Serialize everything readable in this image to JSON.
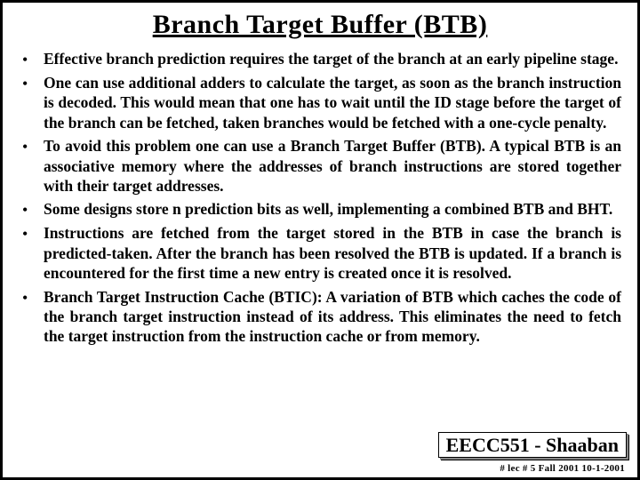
{
  "title": "Branch Target Buffer (BTB)",
  "bullets": [
    "Effective branch prediction requires the target of the branch at an early pipeline stage.",
    "One can use additional adders to calculate the target, as soon as the branch instruction is decoded. This would mean that one has to wait until the ID stage before the target of the branch can be fetched, taken branches would be fetched with a one-cycle penalty.",
    "To avoid this problem one can use a Branch Target Buffer (BTB). A typical BTB is an associative memory where the addresses of branch instructions are stored together with their target addresses.",
    "Some designs store  n  prediction bits as well, implementing a combined BTB and BHT.",
    "Instructions are fetched from the target stored in the BTB in case the branch is predicted-taken.  After the branch has been resolved the BTB is updated. If a branch is encountered for the first time a new entry is created once it is resolved.",
    "Branch Target Instruction Cache (BTIC):  A variation of BTB which caches the code of the branch target instruction instead of its address.  This eliminates the need to fetch the target instruction from the instruction cache or from memory."
  ],
  "footer_box": "EECC551 - Shaaban",
  "footer_small": "#  lec # 5    Fall 2001   10-1-2001",
  "colors": {
    "background": "#ffffff",
    "text": "#000000",
    "border": "#000000"
  }
}
